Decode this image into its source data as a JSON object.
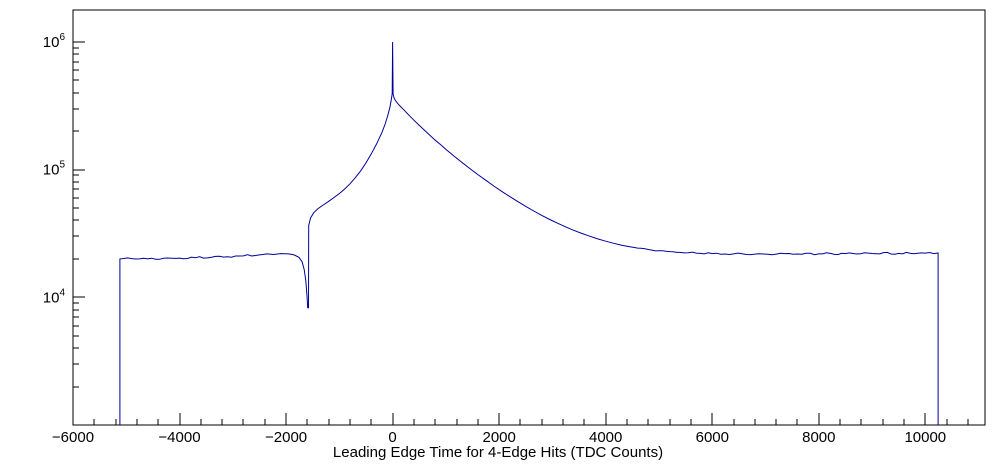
{
  "chart_data": {
    "type": "line",
    "title": "",
    "xlabel": "Leading Edge Time for 4-Edge Hits (TDC Counts)",
    "ylabel": "",
    "background_color": "#ffffff",
    "frame_color": "#000000",
    "line_color": "#000099",
    "noise_fraction": 0.018,
    "grid": false,
    "x_axis": {
      "min": -6000,
      "max": 11120,
      "major_ticks": [
        -6000,
        -4000,
        -2000,
        0,
        2000,
        4000,
        6000,
        8000,
        10000
      ],
      "tick_labels": [
        "−6000",
        "−4000",
        "−2000",
        "0",
        "2000",
        "4000",
        "6000",
        "8000",
        "10000"
      ],
      "minor_tick_step": 400
    },
    "y_axis": {
      "scale": "log",
      "min": 1000,
      "max": 1780000,
      "decade_exponents": [
        3,
        4,
        5,
        6
      ],
      "labeled": [
        {
          "value": 10000,
          "mantissa": "10",
          "exponent": "4"
        },
        {
          "value": 100000,
          "mantissa": "10",
          "exponent": "5"
        },
        {
          "value": 1000000,
          "mantissa": "10",
          "exponent": "6"
        }
      ]
    },
    "points": [
      [
        -5120,
        0
      ],
      [
        -5120,
        20000
      ],
      [
        -4900,
        20100
      ],
      [
        -4600,
        20000
      ],
      [
        -4300,
        20200
      ],
      [
        -4000,
        20300
      ],
      [
        -3700,
        20400
      ],
      [
        -3400,
        20600
      ],
      [
        -3100,
        20800
      ],
      [
        -2800,
        21100
      ],
      [
        -2500,
        21500
      ],
      [
        -2300,
        21800
      ],
      [
        -2100,
        22000
      ],
      [
        -1950,
        21900
      ],
      [
        -1850,
        21500
      ],
      [
        -1760,
        20600
      ],
      [
        -1700,
        19000
      ],
      [
        -1660,
        16500
      ],
      [
        -1630,
        13500
      ],
      [
        -1610,
        10500
      ],
      [
        -1595,
        8300
      ],
      [
        -1580,
        8300
      ],
      [
        -1575,
        36500
      ],
      [
        -1540,
        42000
      ],
      [
        -1480,
        46000
      ],
      [
        -1400,
        49500
      ],
      [
        -1300,
        53000
      ],
      [
        -1200,
        56500
      ],
      [
        -1100,
        60500
      ],
      [
        -1000,
        65000
      ],
      [
        -900,
        70500
      ],
      [
        -800,
        77500
      ],
      [
        -700,
        86500
      ],
      [
        -600,
        98000
      ],
      [
        -500,
        113000
      ],
      [
        -400,
        133000
      ],
      [
        -300,
        159000
      ],
      [
        -200,
        196000
      ],
      [
        -140,
        228000
      ],
      [
        -90,
        266000
      ],
      [
        -50,
        310000
      ],
      [
        -20,
        365000
      ],
      [
        -8,
        395000
      ],
      [
        0,
        1000000
      ],
      [
        8,
        390000
      ],
      [
        30,
        362000
      ],
      [
        60,
        345000
      ],
      [
        100,
        328000
      ],
      [
        150,
        312000
      ],
      [
        200,
        297000
      ],
      [
        300,
        269000
      ],
      [
        400,
        244000
      ],
      [
        500,
        222000
      ],
      [
        600,
        203000
      ],
      [
        700,
        186000
      ],
      [
        800,
        170000
      ],
      [
        900,
        157000
      ],
      [
        1000,
        144000
      ],
      [
        1150,
        128000
      ],
      [
        1300,
        114000
      ],
      [
        1450,
        102000
      ],
      [
        1600,
        91500
      ],
      [
        1750,
        82500
      ],
      [
        1900,
        74500
      ],
      [
        2050,
        67500
      ],
      [
        2200,
        61500
      ],
      [
        2350,
        56200
      ],
      [
        2500,
        51500
      ],
      [
        2650,
        47400
      ],
      [
        2800,
        43800
      ],
      [
        2950,
        40700
      ],
      [
        3100,
        38000
      ],
      [
        3250,
        35600
      ],
      [
        3400,
        33500
      ],
      [
        3550,
        31700
      ],
      [
        3700,
        30100
      ],
      [
        3850,
        28700
      ],
      [
        4000,
        27500
      ],
      [
        4150,
        26500
      ],
      [
        4300,
        25600
      ],
      [
        4450,
        24900
      ],
      [
        4600,
        24300
      ],
      [
        4800,
        23700
      ],
      [
        5000,
        23200
      ],
      [
        5200,
        22800
      ],
      [
        5400,
        22500
      ],
      [
        5700,
        22200
      ],
      [
        6000,
        22000
      ],
      [
        6400,
        21900
      ],
      [
        6800,
        21800
      ],
      [
        7200,
        21800
      ],
      [
        7600,
        21850
      ],
      [
        8000,
        21900
      ],
      [
        8500,
        22000
      ],
      [
        9000,
        22050
      ],
      [
        9500,
        22100
      ],
      [
        10000,
        22200
      ],
      [
        10240,
        22250
      ],
      [
        10240,
        0
      ]
    ]
  }
}
